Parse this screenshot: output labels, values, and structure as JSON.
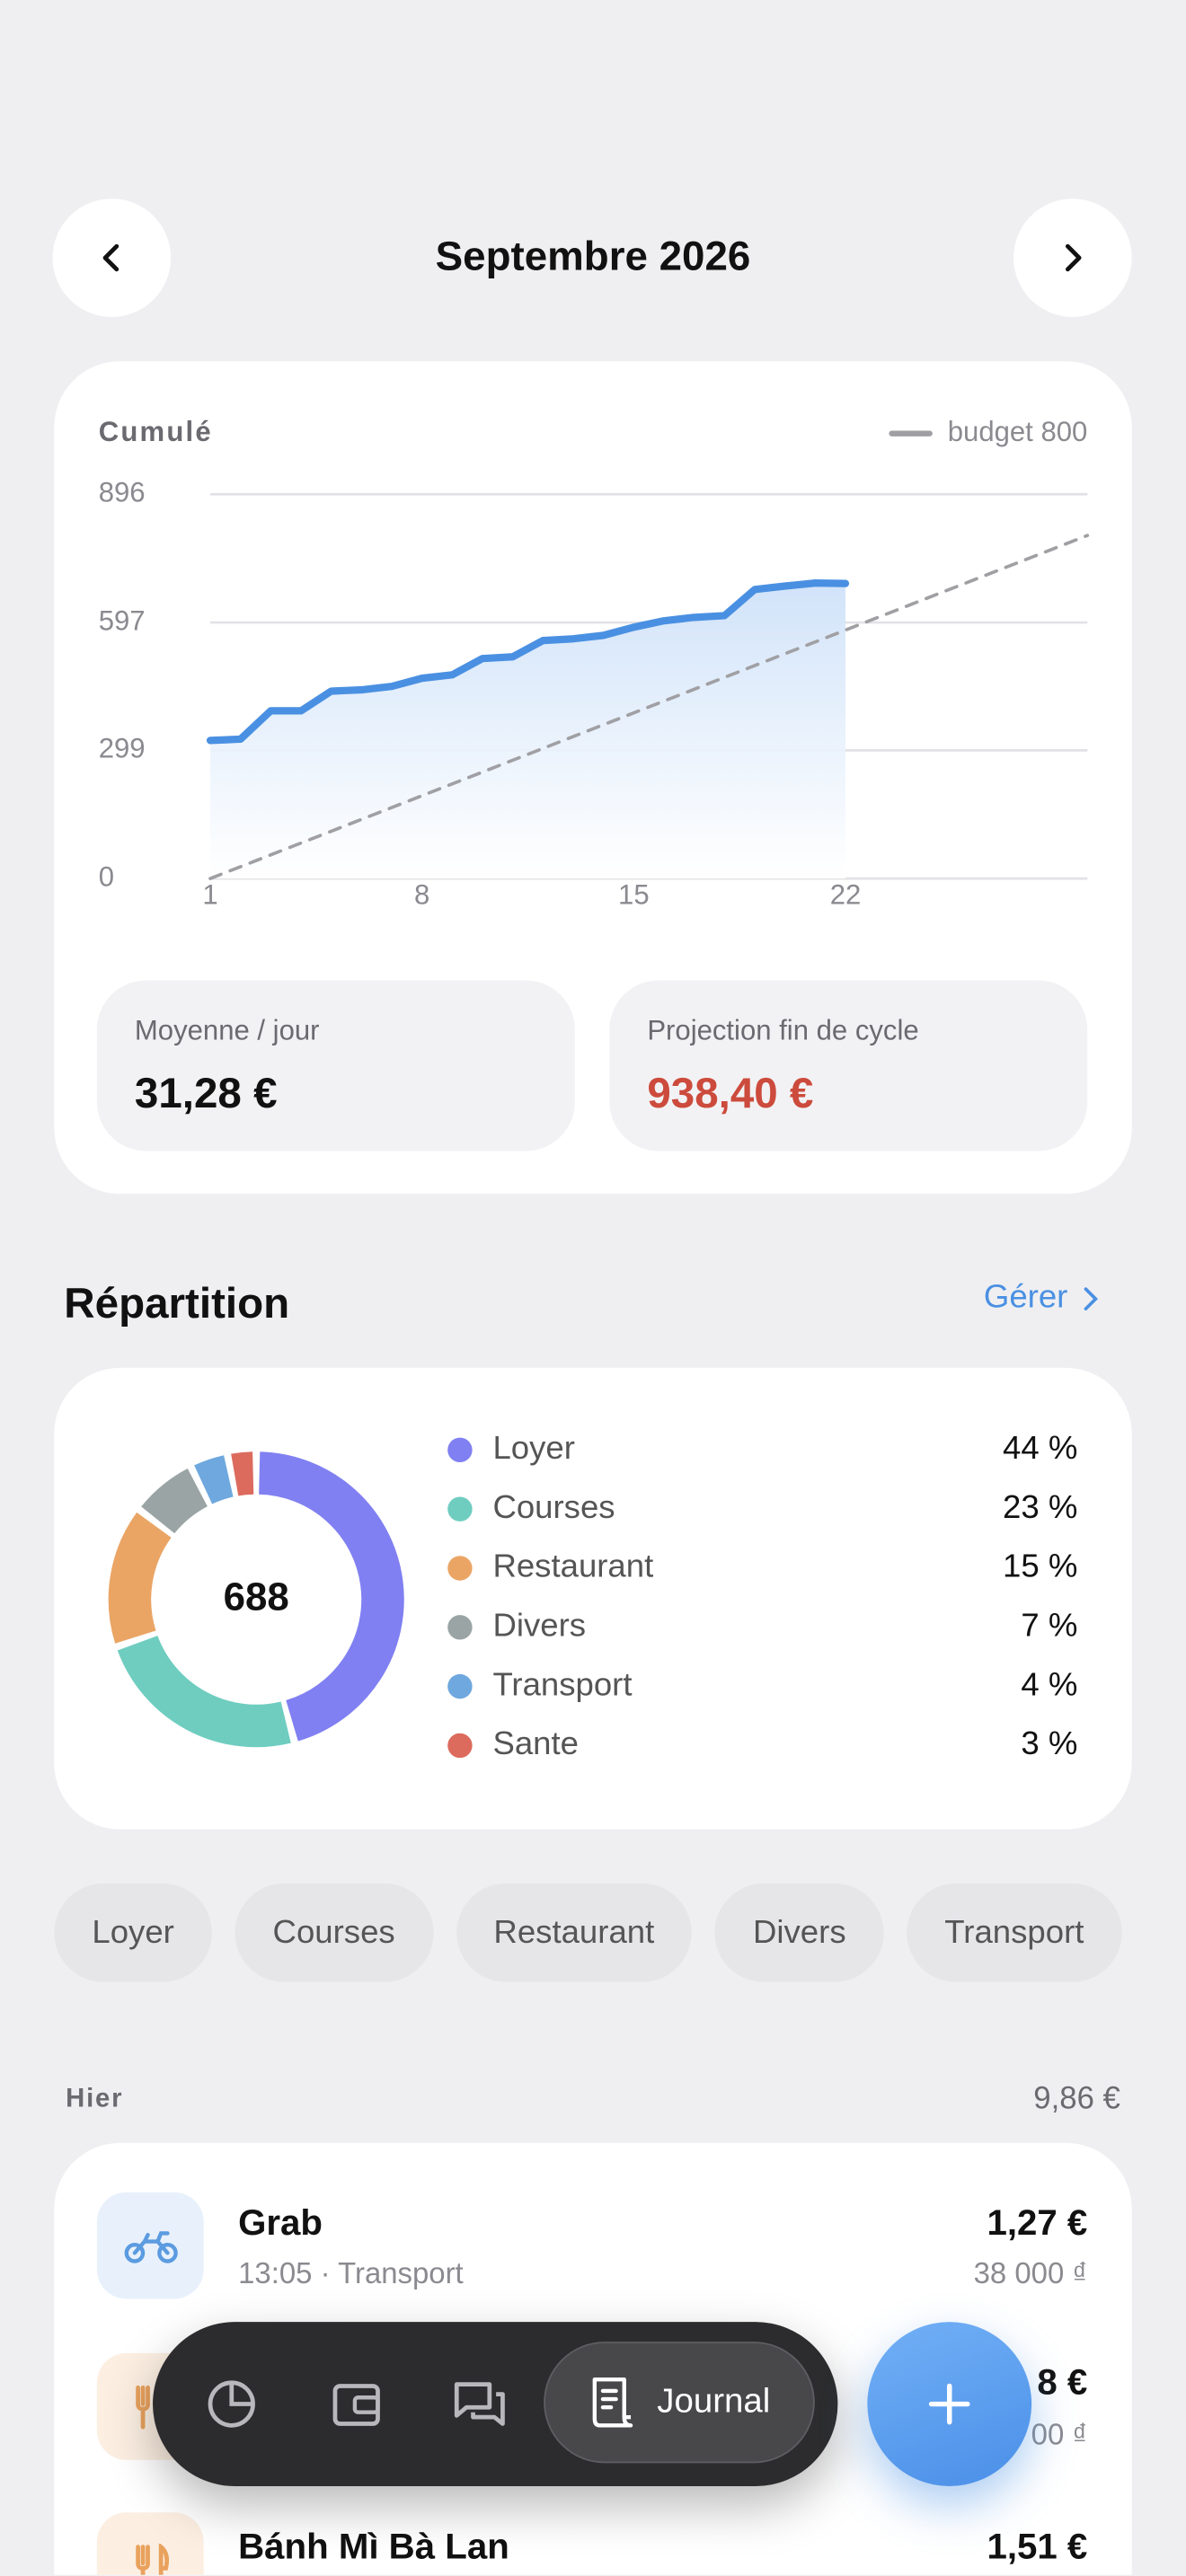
{
  "header": {
    "title": "Septembre 2026"
  },
  "chart_data": [
    {
      "type": "line",
      "title": "Cumulé",
      "x": [
        1,
        2,
        3,
        4,
        5,
        6,
        7,
        8,
        9,
        10,
        11,
        12,
        13,
        14,
        15,
        16,
        17,
        18,
        19,
        20,
        21,
        22
      ],
      "series": [
        {
          "color": "#4a90e2",
          "values": [
            322,
            325,
            391,
            391,
            437,
            440,
            448,
            467,
            475,
            513,
            517,
            555,
            559,
            567,
            586,
            601,
            609,
            613,
            674,
            682,
            689,
            688
          ]
        },
        {
          "name": "budget 800",
          "color": "#a0a0a4",
          "dashed": true,
          "x": [
            1,
            30
          ],
          "values": [
            0,
            800
          ]
        }
      ],
      "xlim": [
        1,
        30
      ],
      "xticks": [
        1,
        8,
        15,
        22
      ],
      "ylim": [
        0,
        896
      ],
      "yticks": [
        0,
        299,
        597,
        896
      ],
      "grid": true,
      "legend": "top-right"
    },
    {
      "type": "pie",
      "donut": true,
      "title": "Répartition",
      "center_label": 688,
      "categories": [
        "Loyer",
        "Courses",
        "Restaurant",
        "Divers",
        "Transport",
        "Sante"
      ],
      "values": [
        44,
        23,
        15,
        7,
        4,
        3
      ],
      "value_labels": [
        "44 %",
        "23 %",
        "15 %",
        "7 %",
        "4 %",
        "3 %"
      ],
      "colors": [
        "#8080f2",
        "#6fcdc0",
        "#eaa565",
        "#9aa4a4",
        "#6ea8de",
        "#dc6b5e"
      ]
    }
  ],
  "section_action": "Gérer",
  "stats": [
    {
      "label": "Moyenne / jour",
      "value": "31,28 €"
    },
    {
      "label": "Projection fin de cycle",
      "value": "938,40 €"
    }
  ],
  "filters": [
    "Loyer",
    "Courses",
    "Restaurant",
    "Divers",
    "Transport"
  ],
  "day_group": {
    "label": "Hier",
    "total": "9,86 €"
  },
  "transactions": [
    {
      "name": "Grab",
      "details": "13:05 · Transport",
      "amount": "1,27 €",
      "amount_local": "38 000 ₫"
    },
    {
      "amount": "8 €",
      "amount_local": "00 ₫"
    },
    {
      "name": "Bánh Mì Bà Lan",
      "amount": "1,51 €"
    }
  ],
  "nav": {
    "active": "Journal"
  }
}
